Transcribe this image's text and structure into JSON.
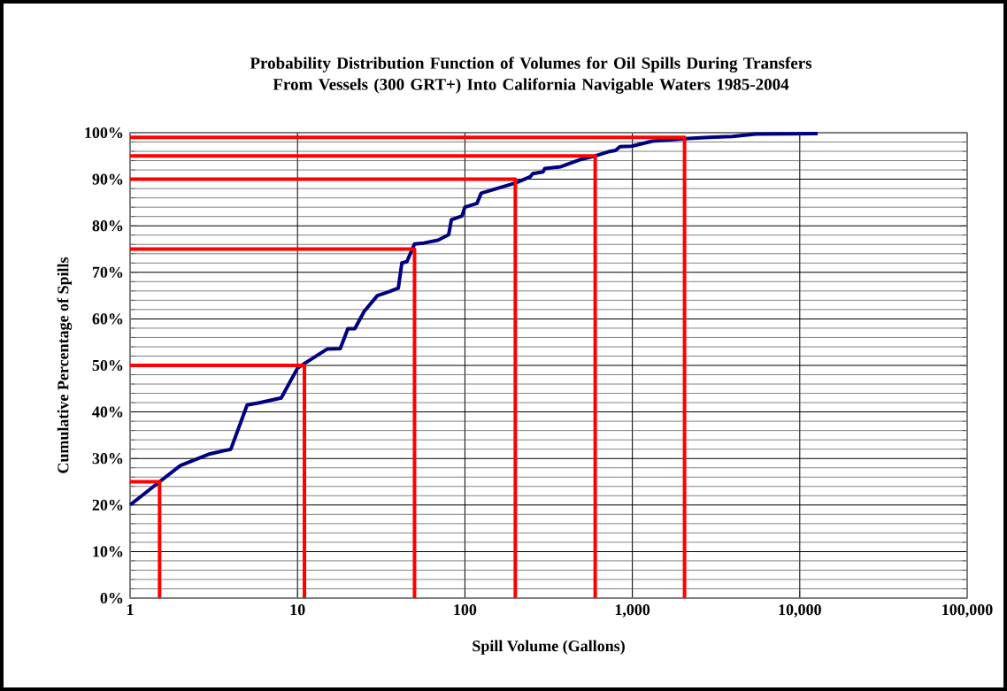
{
  "chart_data": {
    "type": "line",
    "title": "Probability Distribution Function of Volumes for Oil Spills During Transfers From Vessels (300 GRT+) Into California Navigable Waters 1985-2004",
    "xlabel": "Spill Volume (Gallons)",
    "ylabel": "Cumulative Percentage of Spills",
    "log": "x",
    "grid": true,
    "marker": "none",
    "line_style": "solid",
    "xlim": [
      1,
      100000
    ],
    "ylim": [
      0,
      100
    ],
    "xticks": [
      1,
      10,
      100,
      {
        "value": 1000,
        "label": "1,000"
      },
      {
        "value": 10000,
        "label": "10,000"
      },
      {
        "value": 100000,
        "label": "100,000"
      }
    ],
    "yticks": [
      {
        "value": 0,
        "label": "0%"
      },
      {
        "value": 10,
        "label": "10%"
      },
      {
        "value": 20,
        "label": "20%"
      },
      {
        "value": 30,
        "label": "30%"
      },
      {
        "value": 40,
        "label": "40%"
      },
      {
        "value": 50,
        "label": "50%"
      },
      {
        "value": 60,
        "label": "60%"
      },
      {
        "value": 70,
        "label": "70%"
      },
      {
        "value": 80,
        "label": "80%"
      },
      {
        "value": 90,
        "label": "90%"
      },
      {
        "value": 100,
        "label": "100%"
      }
    ],
    "series": [
      {
        "color": "#000080",
        "x": [
          1,
          1.5,
          2,
          3,
          4,
          5,
          6,
          8,
          10,
          11,
          15,
          18,
          20,
          22,
          25,
          30,
          35,
          40,
          42,
          45,
          50,
          57,
          69,
          80,
          83,
          96,
          100,
          118,
          125,
          200,
          245,
          254,
          293,
          300,
          374,
          497,
          585,
          717,
          794,
          843,
          991,
          1318,
          2050,
          2850,
          3950,
          5460,
          12800
        ],
        "values": [
          20,
          25,
          28.5,
          31,
          32,
          41.5,
          42,
          43,
          49.4,
          50.4,
          53.5,
          53.6,
          57.9,
          57.9,
          61.6,
          65,
          65.8,
          66.6,
          72,
          72.3,
          76.1,
          76.3,
          76.9,
          78.1,
          81.3,
          82.1,
          84,
          84.8,
          87,
          89.2,
          90.5,
          91.2,
          91.6,
          92.3,
          92.7,
          94.3,
          94.9,
          95.9,
          96.2,
          97,
          97.1,
          98.2,
          98.7,
          99,
          99.2,
          99.7,
          99.8
        ]
      },
      {
        "color": "#ff0000",
        "x": [
          1,
          1.5,
          1.5,
          null,
          1,
          11,
          11,
          null,
          1,
          50,
          50,
          null,
          1,
          200,
          200,
          null,
          1,
          600,
          600,
          null,
          1,
          2050,
          2050
        ],
        "values": [
          25,
          25,
          0,
          null,
          50,
          50,
          0,
          null,
          75,
          75,
          0,
          null,
          90,
          90,
          0,
          null,
          95,
          95,
          0,
          null,
          99,
          99,
          0
        ]
      }
    ]
  }
}
